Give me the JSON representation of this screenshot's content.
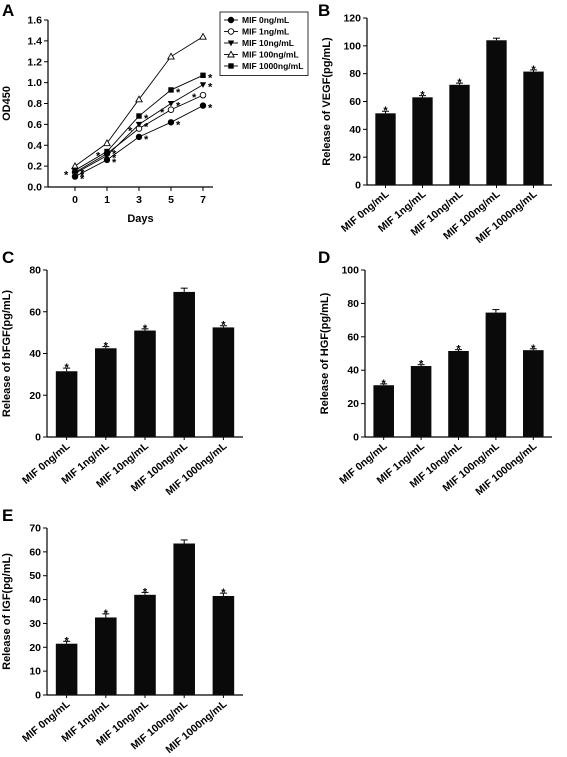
{
  "panels": {
    "a": "A",
    "b": "B",
    "c": "C",
    "d": "D",
    "e": "E"
  },
  "chart_data": [
    {
      "panel": "A",
      "type": "line",
      "xlabel": "Days",
      "ylabel": "OD450",
      "x": [
        0,
        1,
        3,
        5,
        7
      ],
      "x_tick_labels": [
        "0",
        "1",
        "3",
        "5",
        "7"
      ],
      "ylim": [
        0,
        1.6
      ],
      "yticks": [
        0.0,
        0.2,
        0.4,
        0.6,
        0.8,
        1.0,
        1.2,
        1.4,
        1.6
      ],
      "ytick_labels": [
        "0.0",
        "0.2",
        "0.4",
        "0.6",
        "0.8",
        "1.0",
        "1.2",
        "1.4",
        "1.6"
      ],
      "legend_position": "top-right",
      "annotation": "*",
      "series": [
        {
          "name": "MIF 0ng/mL",
          "marker": "filled-circle",
          "values": [
            0.1,
            0.26,
            0.48,
            0.62,
            0.78
          ],
          "sig": [
            true,
            true,
            true,
            true,
            true
          ]
        },
        {
          "name": "MIF 1ng/mL",
          "marker": "open-circle",
          "values": [
            0.14,
            0.32,
            0.56,
            0.74,
            0.88
          ],
          "sig": [
            true,
            true,
            true,
            true,
            true
          ]
        },
        {
          "name": "MIF 10ng/mL",
          "marker": "filled-triangle-down",
          "values": [
            0.13,
            0.3,
            0.6,
            0.8,
            0.98
          ],
          "sig": [
            true,
            true,
            true,
            true,
            true
          ]
        },
        {
          "name": "MIF 100ng/mL",
          "marker": "open-triangle-up",
          "values": [
            0.2,
            0.42,
            0.84,
            1.25,
            1.44
          ],
          "sig": [
            false,
            false,
            false,
            false,
            false
          ]
        },
        {
          "name": "MIF 1000ng/mL",
          "marker": "filled-square",
          "values": [
            0.16,
            0.34,
            0.68,
            0.93,
            1.07
          ],
          "sig": [
            true,
            true,
            true,
            true,
            true
          ]
        }
      ]
    },
    {
      "panel": "B",
      "type": "bar",
      "ylabel": "Release of VEGF(pg/mL)",
      "categories": [
        "MIF 0ng/mL",
        "MIF 1ng/mL",
        "MIF 10ng/mL",
        "MIF 100ng/mL",
        "MIF 1000ng/mL"
      ],
      "values": [
        51.5,
        63,
        72,
        104,
        81.5
      ],
      "errors": [
        1.5,
        1.2,
        1.2,
        1.5,
        1.2
      ],
      "sig": [
        true,
        true,
        true,
        false,
        true
      ],
      "annotation": "*",
      "ylim": [
        0,
        120
      ],
      "yticks": [
        0,
        20,
        40,
        60,
        80,
        100,
        120
      ],
      "ytick_labels": [
        "0",
        "20",
        "40",
        "60",
        "80",
        "100",
        "120"
      ]
    },
    {
      "panel": "C",
      "type": "bar",
      "ylabel": "Release of bFGF(pg/mL)",
      "categories": [
        "MIF 0ng/mL",
        "MIF 1ng/mL",
        "MIF 10ng/mL",
        "MIF 100ng/mL",
        "MIF 1000ng/mL"
      ],
      "values": [
        31.5,
        42.5,
        51,
        69.5,
        52.5
      ],
      "errors": [
        1.5,
        0.8,
        0.8,
        1.8,
        0.8
      ],
      "sig": [
        true,
        true,
        true,
        false,
        true
      ],
      "annotation": "*",
      "ylim": [
        0,
        80
      ],
      "yticks": [
        0,
        20,
        40,
        60,
        80
      ],
      "ytick_labels": [
        "0",
        "20",
        "40",
        "60",
        "80"
      ]
    },
    {
      "panel": "D",
      "type": "bar",
      "ylabel": "Release of HGF(pg/mL)",
      "categories": [
        "MIF 0ng/mL",
        "MIF 1ng/mL",
        "MIF 10ng/mL",
        "MIF 100ng/mL",
        "MIF 1000ng/mL"
      ],
      "values": [
        31,
        42.5,
        51.5,
        74.5,
        52
      ],
      "errors": [
        0.8,
        0.8,
        0.8,
        1.8,
        0.8
      ],
      "sig": [
        true,
        true,
        true,
        false,
        true
      ],
      "annotation": "*",
      "ylim": [
        0,
        100
      ],
      "yticks": [
        0,
        20,
        40,
        60,
        80,
        100
      ],
      "ytick_labels": [
        "0",
        "20",
        "40",
        "60",
        "80",
        "100"
      ]
    },
    {
      "panel": "E",
      "type": "bar",
      "ylabel": "Release of IGF(pg/mL)",
      "categories": [
        "MIF 0ng/mL",
        "MIF 1ng/mL",
        "MIF 10ng/mL",
        "MIF 100ng/mL",
        "MIF 1000ng/mL"
      ],
      "values": [
        21.5,
        32.5,
        42,
        63.5,
        41.5
      ],
      "errors": [
        1.0,
        1.5,
        1.0,
        1.5,
        1.2
      ],
      "sig": [
        true,
        true,
        true,
        false,
        true
      ],
      "annotation": "*",
      "ylim": [
        0,
        70
      ],
      "yticks": [
        0,
        10,
        20,
        30,
        40,
        50,
        60,
        70
      ],
      "ytick_labels": [
        "0",
        "10",
        "20",
        "30",
        "40",
        "50",
        "60",
        "70"
      ]
    }
  ]
}
